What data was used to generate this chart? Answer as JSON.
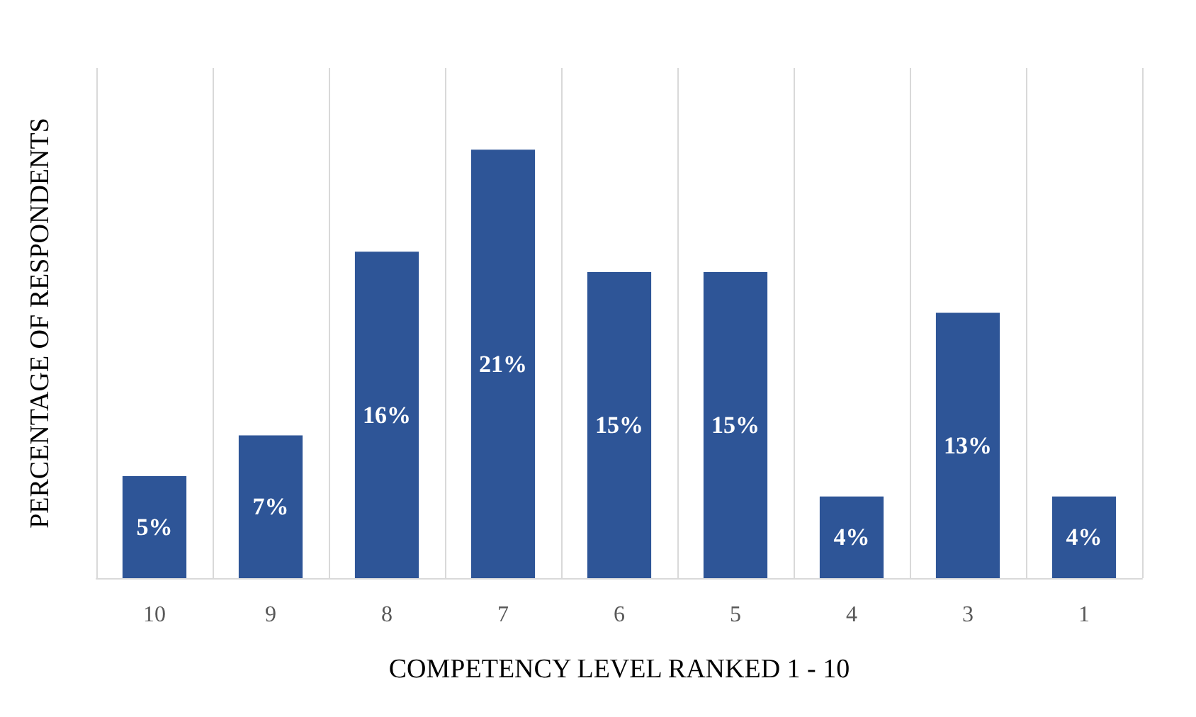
{
  "chart_data": {
    "type": "bar",
    "xlabel": "COMPETENCY LEVEL RANKED 1 - 10",
    "ylabel": "PERCENTAGE OF RESPONDENTS",
    "categories": [
      "10",
      "9",
      "8",
      "7",
      "6",
      "5",
      "4",
      "3",
      "1"
    ],
    "values": [
      5,
      7,
      16,
      21,
      15,
      15,
      4,
      13,
      4
    ],
    "value_labels": [
      "5%",
      "7%",
      "16%",
      "21%",
      "15%",
      "15%",
      "4%",
      "13%",
      "4%"
    ],
    "color": "#2e5597",
    "grid": "x"
  }
}
